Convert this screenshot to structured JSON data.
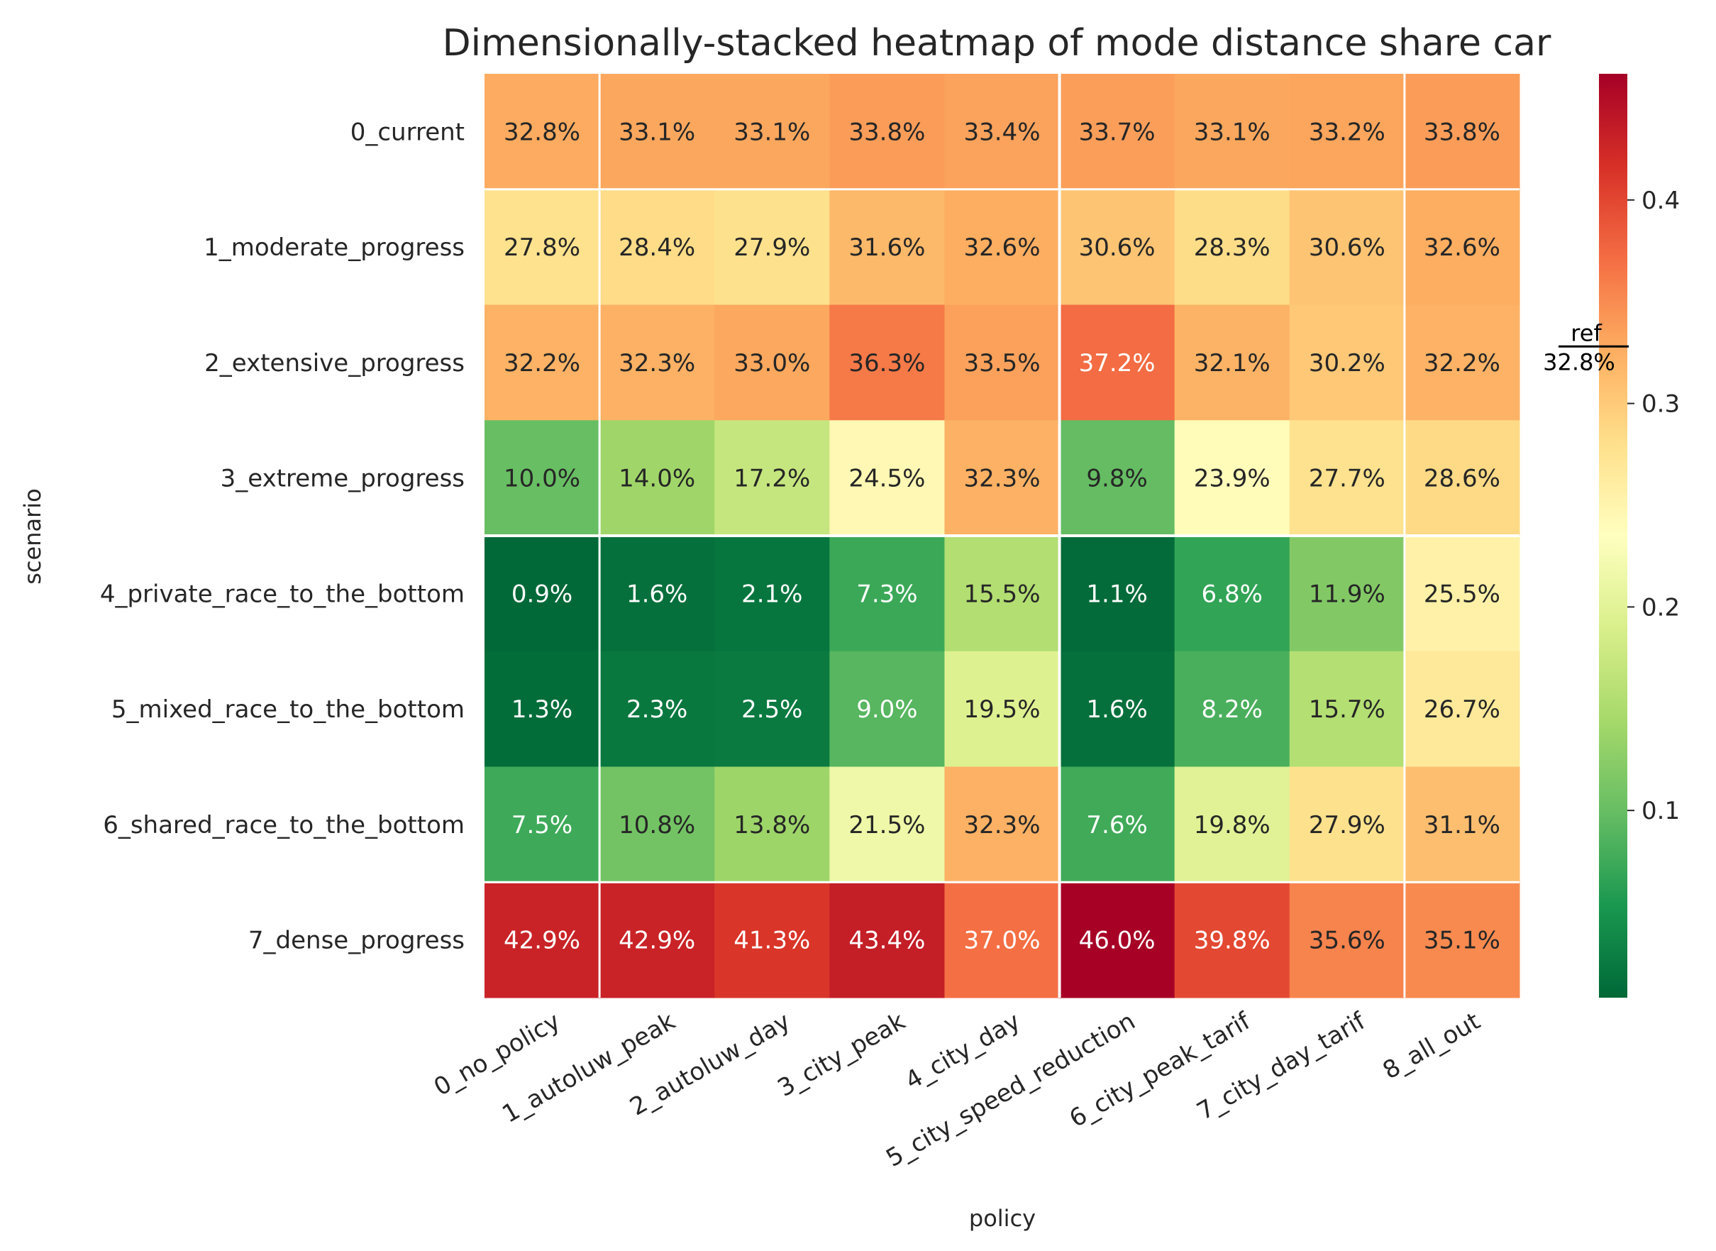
{
  "chart_data": {
    "type": "heatmap",
    "title": "Dimensionally-stacked heatmap of mode distance share car",
    "xlabel": "policy",
    "ylabel": "scenario",
    "x_categories": [
      "0_no_policy",
      "1_autoluw_peak",
      "2_autoluw_day",
      "3_city_peak",
      "4_city_day",
      "5_city_speed_reduction",
      "6_city_peak_tarif",
      "7_city_day_tarif",
      "8_all_out"
    ],
    "y_categories": [
      "0_current",
      "1_moderate_progress",
      "2_extensive_progress",
      "3_extreme_progress",
      "4_private_race_to_the_bottom",
      "5_mixed_race_to_the_bottom",
      "6_shared_race_to_the_bottom",
      "7_dense_progress"
    ],
    "values": [
      [
        32.8,
        33.1,
        33.1,
        33.8,
        33.4,
        33.7,
        33.1,
        33.2,
        33.8
      ],
      [
        27.8,
        28.4,
        27.9,
        31.6,
        32.6,
        30.6,
        28.3,
        30.6,
        32.6
      ],
      [
        32.2,
        32.3,
        33.0,
        36.3,
        33.5,
        37.2,
        32.1,
        30.2,
        32.2
      ],
      [
        10.0,
        14.0,
        17.2,
        24.5,
        32.3,
        9.8,
        23.9,
        27.7,
        28.6
      ],
      [
        0.9,
        1.6,
        2.1,
        7.3,
        15.5,
        1.1,
        6.8,
        11.9,
        25.5
      ],
      [
        1.3,
        2.3,
        2.5,
        9.0,
        19.5,
        1.6,
        8.2,
        15.7,
        26.7
      ],
      [
        7.5,
        10.8,
        13.8,
        21.5,
        32.3,
        7.6,
        19.8,
        27.9,
        31.1
      ],
      [
        42.9,
        42.9,
        41.3,
        43.4,
        37.0,
        46.0,
        39.8,
        35.6,
        35.1
      ]
    ],
    "value_format": "percent_1dp",
    "colormap": "RdYlGn_r",
    "colormap_range": [
      0.008,
      0.462
    ],
    "colorbar_ticks": [
      "0.1",
      "0.2",
      "0.3",
      "0.4"
    ],
    "colorbar_tick_values": [
      0.1,
      0.2,
      0.3,
      0.4
    ],
    "reference": {
      "label": "ref",
      "value_label": "32.8%",
      "value": 0.328
    },
    "separator_after_columns": [
      0,
      4,
      7
    ],
    "separator_after_rows": [
      0,
      3,
      6
    ],
    "separator_colors": {
      "vertical": "#ffffff",
      "horizontal_mid": "#ffffff",
      "horizontal_thick": "#ffffff"
    }
  }
}
